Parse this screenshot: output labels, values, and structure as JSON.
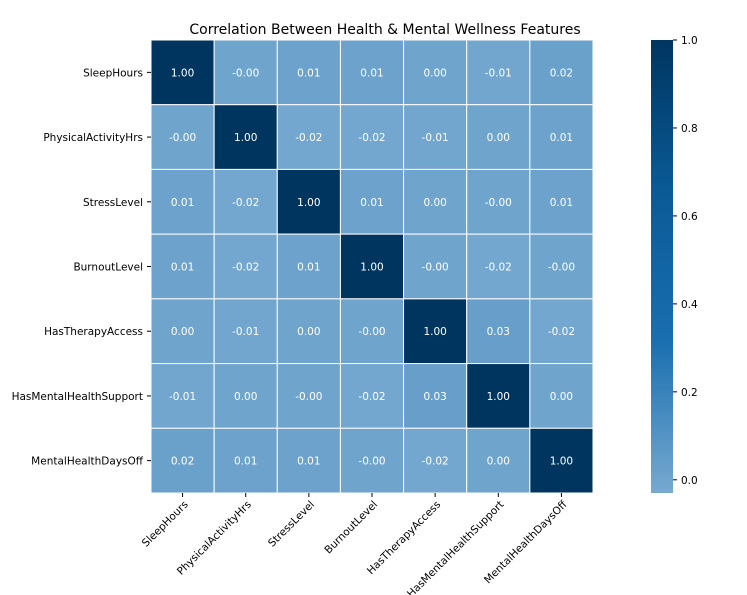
{
  "chart_data": {
    "type": "heatmap",
    "title": "Correlation Between Health & Mental Wellness Features",
    "xlabel": "",
    "ylabel": "",
    "x_categories": [
      "SleepHours",
      "PhysicalActivityHrs",
      "StressLevel",
      "BurnoutLevel",
      "HasTherapyAccess",
      "HasMentalHealthSupport",
      "MentalHealthDaysOff"
    ],
    "y_categories": [
      "SleepHours",
      "PhysicalActivityHrs",
      "StressLevel",
      "BurnoutLevel",
      "HasTherapyAccess",
      "HasMentalHealthSupport",
      "MentalHealthDaysOff"
    ],
    "values": [
      [
        1.0,
        -0.0,
        0.01,
        0.01,
        0.0,
        -0.01,
        0.02
      ],
      [
        -0.0,
        1.0,
        -0.02,
        -0.02,
        -0.01,
        0.0,
        0.01
      ],
      [
        0.01,
        -0.02,
        1.0,
        0.01,
        0.0,
        -0.0,
        0.01
      ],
      [
        0.01,
        -0.02,
        0.01,
        1.0,
        -0.0,
        -0.02,
        -0.0
      ],
      [
        0.0,
        -0.01,
        0.0,
        -0.0,
        1.0,
        0.03,
        -0.02
      ],
      [
        -0.01,
        0.0,
        -0.0,
        -0.02,
        0.03,
        1.0,
        0.0
      ],
      [
        0.02,
        0.01,
        0.01,
        -0.0,
        -0.02,
        0.0,
        1.0
      ]
    ],
    "cell_labels": [
      [
        "1.00",
        "-0.00",
        "0.01",
        "0.01",
        "0.00",
        "-0.01",
        "0.02"
      ],
      [
        "-0.00",
        "1.00",
        "-0.02",
        "-0.02",
        "-0.01",
        "0.00",
        "0.01"
      ],
      [
        "0.01",
        "-0.02",
        "1.00",
        "0.01",
        "0.00",
        "-0.00",
        "0.01"
      ],
      [
        "0.01",
        "-0.02",
        "0.01",
        "1.00",
        "-0.00",
        "-0.02",
        "-0.00"
      ],
      [
        "0.00",
        "-0.01",
        "0.00",
        "-0.00",
        "1.00",
        "0.03",
        "-0.02"
      ],
      [
        "-0.01",
        "0.00",
        "-0.00",
        "-0.02",
        "0.03",
        "1.00",
        "0.00"
      ],
      [
        "0.02",
        "0.01",
        "0.01",
        "-0.00",
        "-0.02",
        "0.00",
        "1.00"
      ]
    ],
    "colorbar": {
      "min": -0.03,
      "max": 1.0,
      "ticks": [
        0.0,
        0.2,
        0.4,
        0.6,
        0.8,
        1.0
      ],
      "tick_labels": [
        "0.0",
        "0.2",
        "0.4",
        "0.6",
        "0.8",
        "1.0"
      ],
      "colors": [
        "#77a9d0",
        "#1a6fb0",
        "#0a5a96",
        "#003560"
      ]
    },
    "grid": true,
    "legend": "colorbar-right"
  }
}
